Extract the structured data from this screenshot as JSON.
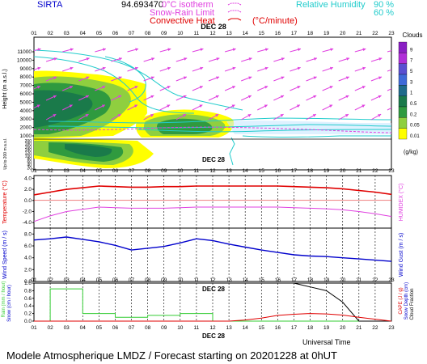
{
  "header": {
    "site": "SIRTA",
    "coords": "94.693470",
    "legend_isotherm": "0°C isotherm",
    "legend_snowrain": "Snow-Rain Limit",
    "legend_convective": "Convective Heat",
    "legend_convective_unit": "(°C/minute)",
    "legend_rh": "Relative Humidity",
    "rh_90": "90 %",
    "rh_60": "60 %"
  },
  "footer": {
    "text": "Modele Atmospherique LMDZ / Forecast starting on 20201228 at 0hUT",
    "universal_time": "Universal Time"
  },
  "hours": [
    "01",
    "02",
    "03",
    "04",
    "05",
    "06",
    "07",
    "08",
    "09",
    "10",
    "11",
    "12",
    "13",
    "14",
    "15",
    "16",
    "17",
    "18",
    "19",
    "20",
    "21",
    "22",
    "23"
  ],
  "date_label": "DEC 28",
  "clouds_legend": {
    "title": "Clouds",
    "unit": "(g/kg)",
    "levels": [
      "9",
      "7",
      "5",
      "3",
      "1",
      "0.5",
      "0.2",
      "0.05",
      "0.01"
    ],
    "colors": [
      "#8a1fc4",
      "#b02fd8",
      "#5a4fd1",
      "#3f6ad8",
      "#1f6b8a",
      "#1a7a4a",
      "#2f9a3f",
      "#8fcf3f",
      "#ffff00"
    ]
  },
  "chart_data": [
    {
      "type": "heatmap",
      "title": "",
      "ylabel": "Height (m a.s.l.)",
      "ylabel2": "Up to 200 m a.s.l.",
      "y_ticks": [
        "11000",
        "10000",
        "9000",
        "8000",
        "7000",
        "6000",
        "5000",
        "4000",
        "3000",
        "2000",
        "1000"
      ],
      "y_ticks_low": [
        "200",
        "180",
        "160",
        "140",
        "120",
        "100",
        "80",
        "60",
        "40",
        "20"
      ],
      "colorbar_label": "Clouds (g/kg)",
      "wind_arrows": true,
      "rh_contours": [
        "90 %",
        "60 %"
      ]
    },
    {
      "type": "line",
      "ylabel": "Temperature (°C)",
      "ylabel2": "HUMIDEX (°C)",
      "y_ticks": [
        "4.0",
        "2.0",
        "0.0",
        "-2.0",
        "-4.0"
      ],
      "ylim": [
        -5,
        4.5
      ],
      "x": [
        1,
        2,
        3,
        4,
        5,
        6,
        7,
        8,
        9,
        10,
        11,
        12,
        13,
        14,
        15,
        16,
        17,
        18,
        19,
        20,
        21,
        22,
        23
      ],
      "series": [
        {
          "name": "Temperature",
          "color": "#e00000",
          "values": [
            1.0,
            1.5,
            2.0,
            2.3,
            2.6,
            2.5,
            2.4,
            2.4,
            2.5,
            2.5,
            2.6,
            2.6,
            2.6,
            2.6,
            2.6,
            2.6,
            2.5,
            2.4,
            2.3,
            2.1,
            1.8,
            1.5,
            1.1
          ]
        },
        {
          "name": "HUMIDEX",
          "color": "#e040e0",
          "values": [
            -3.8,
            -2.8,
            -2.0,
            -1.6,
            -1.2,
            -1.3,
            -1.4,
            -1.4,
            -1.4,
            -1.3,
            -1.2,
            -1.2,
            -1.2,
            -1.2,
            -1.2,
            -1.2,
            -1.3,
            -1.4,
            -1.5,
            -1.7,
            -2.0,
            -2.4,
            -2.9
          ]
        }
      ]
    },
    {
      "type": "line",
      "ylabel": "Wind Speed (m / s)",
      "ylabel2": "Wind Gust (m / s)",
      "y_ticks": [
        "8.0",
        "6.0",
        "4.0",
        "2.0",
        "0.0"
      ],
      "ylim": [
        0,
        9
      ],
      "x": [
        1,
        2,
        3,
        4,
        5,
        6,
        7,
        8,
        9,
        10,
        11,
        12,
        13,
        14,
        15,
        16,
        17,
        18,
        19,
        20,
        21,
        22,
        23
      ],
      "series": [
        {
          "name": "Wind Speed",
          "color": "#0000cc",
          "values": [
            7.0,
            7.2,
            7.5,
            7.1,
            6.7,
            6.1,
            5.3,
            5.6,
            5.9,
            6.5,
            7.2,
            6.9,
            6.3,
            5.8,
            5.3,
            4.9,
            4.5,
            4.3,
            4.2,
            4.0,
            3.8,
            3.6,
            3.4
          ]
        }
      ]
    },
    {
      "type": "line",
      "ylabel": "Rain (mm / hour)",
      "ylabel_b": "Snow (cm / hour)",
      "ylabel2": "Snow Depth (cm)",
      "ylabel2_b": "Cloud Fraction",
      "ylabel3": "CAPE (J / g)",
      "y_ticks": [
        "1.0",
        "0.8",
        "0.6",
        "0.4",
        "0.2",
        "0.0"
      ],
      "ylim": [
        0,
        1.0
      ],
      "x": [
        1,
        2,
        3,
        4,
        5,
        6,
        7,
        8,
        9,
        10,
        11,
        12,
        13,
        14,
        15,
        16,
        17,
        18,
        19,
        20,
        21,
        22,
        23
      ],
      "series": [
        {
          "name": "Rain",
          "color": "#33cc33",
          "values": [
            0,
            0.85,
            0.85,
            0.2,
            0.2,
            0.1,
            0.1,
            0.15,
            0.15,
            0.2,
            0.2,
            0.0,
            0,
            0,
            0,
            0,
            0,
            0,
            0,
            0,
            0,
            0,
            0
          ]
        },
        {
          "name": "Cloud Fraction",
          "color": "#000000",
          "values": [
            1,
            1,
            1,
            1,
            1,
            1,
            1,
            1,
            1,
            1,
            1,
            1,
            1,
            1,
            1,
            1,
            1.0,
            0.9,
            0.8,
            0.5,
            0.0,
            0.0,
            0.0
          ]
        },
        {
          "name": "CAPE",
          "color": "#e00000",
          "values": [
            0,
            0,
            0,
            0,
            0,
            0,
            0,
            0,
            0,
            0,
            0,
            0,
            0,
            0.03,
            0.08,
            0.15,
            0.18,
            0.2,
            0.19,
            0.16,
            0.1,
            0.05,
            0.0
          ]
        }
      ]
    }
  ]
}
